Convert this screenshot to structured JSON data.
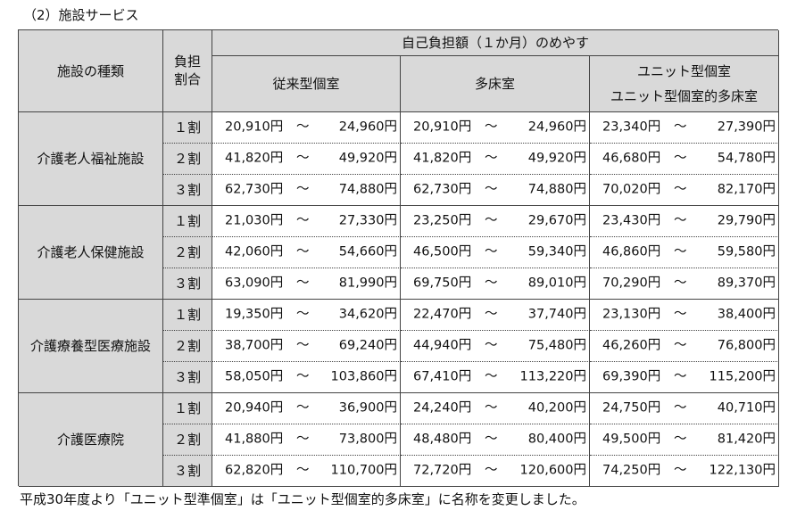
{
  "title": "（2）施設サービス",
  "table": {
    "header": {
      "facility": "施設の種類",
      "ratio": [
        "負担",
        "割合"
      ],
      "cost": "自己負担額（１か月）のめやす",
      "columns": [
        [
          "従来型個室"
        ],
        [
          "多床室"
        ],
        [
          "ユニット型個室",
          "ユニット型個室的多床室"
        ]
      ]
    },
    "groups": [
      {
        "facility": "介護老人福祉施設",
        "rows": [
          {
            "ratio": "１割",
            "cells": [
              [
                "20,910円",
                "～",
                "24,960円"
              ],
              [
                "20,910円",
                "～",
                "24,960円"
              ],
              [
                "23,340円",
                "～",
                "27,390円"
              ]
            ]
          },
          {
            "ratio": "２割",
            "cells": [
              [
                "41,820円",
                "～",
                "49,920円"
              ],
              [
                "41,820円",
                "～",
                "49,920円"
              ],
              [
                "46,680円",
                "～",
                "54,780円"
              ]
            ]
          },
          {
            "ratio": "３割",
            "cells": [
              [
                "62,730円",
                "～",
                "74,880円"
              ],
              [
                "62,730円",
                "～",
                "74,880円"
              ],
              [
                "70,020円",
                "～",
                "82,170円"
              ]
            ]
          }
        ]
      },
      {
        "facility": "介護老人保健施設",
        "rows": [
          {
            "ratio": "１割",
            "cells": [
              [
                "21,030円",
                "～",
                "27,330円"
              ],
              [
                "23,250円",
                "～",
                "29,670円"
              ],
              [
                "23,430円",
                "～",
                "29,790円"
              ]
            ]
          },
          {
            "ratio": "２割",
            "cells": [
              [
                "42,060円",
                "～",
                "54,660円"
              ],
              [
                "46,500円",
                "～",
                "59,340円"
              ],
              [
                "46,860円",
                "～",
                "59,580円"
              ]
            ]
          },
          {
            "ratio": "３割",
            "cells": [
              [
                "63,090円",
                "～",
                "81,990円"
              ],
              [
                "69,750円",
                "～",
                "89,010円"
              ],
              [
                "70,290円",
                "～",
                "89,370円"
              ]
            ]
          }
        ]
      },
      {
        "facility": "介護療養型医療施設",
        "rows": [
          {
            "ratio": "１割",
            "cells": [
              [
                "19,350円",
                "～",
                "34,620円"
              ],
              [
                "22,470円",
                "～",
                "37,740円"
              ],
              [
                "23,130円",
                "～",
                "38,400円"
              ]
            ]
          },
          {
            "ratio": "２割",
            "cells": [
              [
                "38,700円",
                "～",
                "69,240円"
              ],
              [
                "44,940円",
                "～",
                "75,480円"
              ],
              [
                "46,260円",
                "～",
                "76,800円"
              ]
            ]
          },
          {
            "ratio": "３割",
            "cells": [
              [
                "58,050円",
                "～",
                "103,860円"
              ],
              [
                "67,410円",
                "～",
                "113,220円"
              ],
              [
                "69,390円",
                "～",
                "115,200円"
              ]
            ]
          }
        ]
      },
      {
        "facility": "介護医療院",
        "rows": [
          {
            "ratio": "１割",
            "cells": [
              [
                "20,940円",
                "～",
                "36,900円"
              ],
              [
                "24,240円",
                "～",
                "40,200円"
              ],
              [
                "24,750円",
                "～",
                "40,710円"
              ]
            ]
          },
          {
            "ratio": "２割",
            "cells": [
              [
                "41,880円",
                "～",
                "73,800円"
              ],
              [
                "48,480円",
                "～",
                "80,400円"
              ],
              [
                "49,500円",
                "～",
                "81,420円"
              ]
            ]
          },
          {
            "ratio": "３割",
            "cells": [
              [
                "62,820円",
                "～",
                "110,700円"
              ],
              [
                "72,720円",
                "～",
                "120,600円"
              ],
              [
                "74,250円",
                "～",
                "122,130円"
              ]
            ]
          }
        ]
      }
    ]
  },
  "footnote": "平成30年度より「ユニット型準個室」は「ユニット型個室的多床室」に名称を変更しました。"
}
